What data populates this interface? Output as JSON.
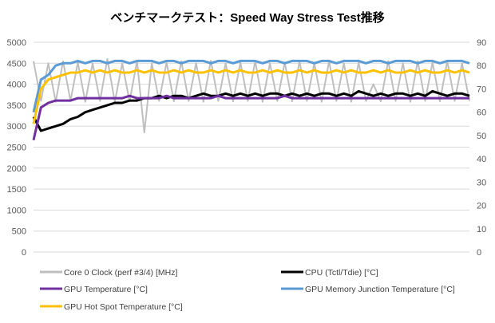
{
  "chart_data": {
    "type": "line",
    "title": "ベンチマークテスト：Speed Way Stress Test推移",
    "xlabel": "",
    "ylabel_left": "",
    "ylabel_right": "",
    "ylim_left": [
      0,
      5000
    ],
    "ylim_right": [
      0,
      90
    ],
    "yticks_left": [
      "0",
      "250",
      "500",
      "750",
      "1000",
      "1250",
      "1500",
      "1750",
      "2000",
      "2250",
      "2500",
      "2750",
      "3000",
      "3250",
      "3500",
      "3750",
      "4000",
      "4250",
      "4500",
      "4750",
      "5000"
    ],
    "yticks_left_shown": [
      "0",
      "500",
      "1000",
      "1500",
      "2000",
      "2500",
      "3000",
      "3500",
      "4000",
      "4500",
      "5000"
    ],
    "yticks_right_shown": [
      "0",
      "10",
      "20",
      "30",
      "40",
      "50",
      "60",
      "70",
      "80",
      "90"
    ],
    "grid": true,
    "legend_position": "bottom",
    "series": [
      {
        "name": "Core 0 Clock (perf #3/4) [MHz]",
        "axis": "left",
        "color": "#bfbfbf",
        "values": [
          4550,
          3600,
          4500,
          3580,
          4550,
          3600,
          4520,
          3580,
          4500,
          3600,
          4600,
          3580,
          4500,
          3590,
          4550,
          2850,
          4500,
          3600,
          4520,
          3590,
          4550,
          3600,
          4500,
          3580,
          4560,
          3600,
          4500,
          3590,
          4520,
          3600,
          4550,
          3580,
          4500,
          3600,
          4520,
          3590,
          4550,
          3600,
          4500,
          3580,
          4550,
          3600,
          4500,
          3580,
          4520,
          3600,
          4000,
          3590,
          4550,
          3600,
          4500,
          3580,
          4550,
          3600,
          4520,
          3590,
          4550,
          3600,
          4500,
          3600
        ]
      },
      {
        "name": "CPU (Tctl/Tdie) [°C]",
        "axis": "right",
        "color": "#000000",
        "values": [
          58,
          52,
          53,
          54,
          55,
          57,
          58,
          60,
          61,
          62,
          63,
          64,
          64,
          65,
          65,
          66,
          66,
          67,
          66,
          67,
          67,
          66,
          67,
          68,
          67,
          67,
          68,
          67,
          68,
          67,
          68,
          67,
          68,
          68,
          67,
          68,
          67,
          68,
          67,
          68,
          68,
          67,
          68,
          67,
          69,
          68,
          67,
          68,
          67,
          68,
          68,
          67,
          68,
          67,
          69,
          68,
          67,
          68,
          68,
          67
        ]
      },
      {
        "name": "GPU Temperature [°C]",
        "axis": "right",
        "color": "#7030a0",
        "values": [
          48,
          62,
          64,
          65,
          65,
          65,
          66,
          66,
          66,
          66,
          66,
          66,
          66,
          67,
          66,
          66,
          66,
          66,
          67,
          66,
          66,
          66,
          66,
          66,
          66,
          67,
          66,
          66,
          66,
          66,
          66,
          66,
          66,
          66,
          67,
          66,
          66,
          66,
          66,
          66,
          66,
          66,
          66,
          66,
          66,
          66,
          66,
          66,
          66,
          66,
          66,
          66,
          66,
          66,
          66,
          66,
          66,
          66,
          66,
          66
        ]
      },
      {
        "name": "GPU Memory Junction Temperature [°C]",
        "axis": "right",
        "color": "#5b9bd5",
        "values": [
          60,
          74,
          76,
          80,
          81,
          81,
          82,
          81,
          82,
          82,
          81,
          82,
          82,
          81,
          82,
          82,
          82,
          81,
          82,
          82,
          81,
          82,
          82,
          82,
          81,
          82,
          82,
          81,
          82,
          82,
          82,
          81,
          82,
          82,
          81,
          82,
          82,
          82,
          81,
          82,
          82,
          81,
          82,
          82,
          82,
          81,
          82,
          82,
          81,
          82,
          82,
          82,
          81,
          82,
          82,
          81,
          82,
          82,
          82,
          81
        ]
      },
      {
        "name": "GPU Hot Spot Temperature [°C]",
        "axis": "right",
        "color": "#ffc000",
        "values": [
          55,
          70,
          74,
          75,
          76,
          77,
          77,
          78,
          77,
          78,
          77,
          78,
          77,
          77,
          78,
          77,
          78,
          77,
          77,
          78,
          77,
          78,
          77,
          77,
          78,
          77,
          78,
          77,
          78,
          77,
          77,
          78,
          77,
          78,
          77,
          77,
          78,
          77,
          78,
          77,
          77,
          78,
          77,
          78,
          77,
          77,
          78,
          77,
          78,
          77,
          77,
          78,
          77,
          78,
          77,
          77,
          78,
          77,
          78,
          77
        ]
      }
    ]
  }
}
